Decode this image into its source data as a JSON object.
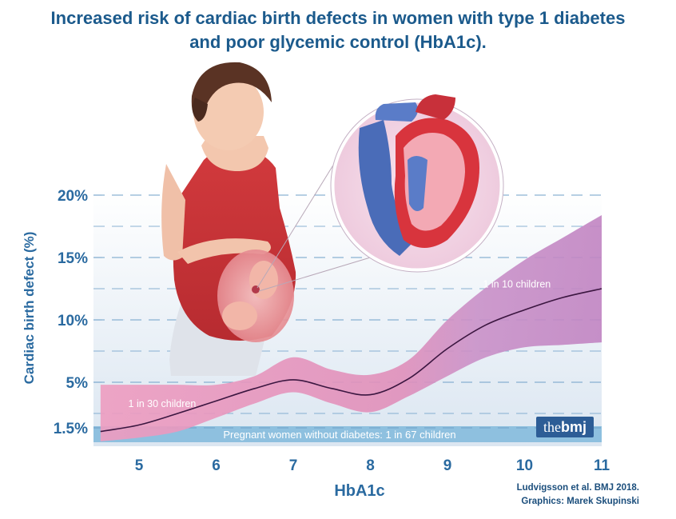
{
  "title_line1": "Increased risk of cardiac birth defects in women with type 1 diabetes",
  "title_line2": "and poor glycemic control (HbA1c).",
  "credits": {
    "source": "Ludvigsson et al. BMJ 2018.",
    "graphics": "Graphics: Marek Skupinski"
  },
  "logo": {
    "light": "the",
    "bold": "bmj"
  },
  "colors": {
    "axis_text": "#2a6aa0",
    "title": "#1b5a8c",
    "band_low": "#e792b6",
    "band_high": "#c98bc6",
    "curve": "#3b1640",
    "baseline_band": "#8ec0df",
    "grid": "#6fa0c8"
  },
  "chart_data": {
    "type": "line",
    "xlabel": "HbA1c",
    "ylabel": "Cardiac birth defect (%)",
    "xlim": [
      4.5,
      11
    ],
    "ylim": [
      0,
      21
    ],
    "x_ticks": [
      5,
      6,
      7,
      8,
      9,
      10,
      11
    ],
    "y_ticks": [
      {
        "value": 1.5,
        "label": "1.5%"
      },
      {
        "value": 5,
        "label": "5%"
      },
      {
        "value": 10,
        "label": "10%"
      },
      {
        "value": 15,
        "label": "15%"
      },
      {
        "value": 20,
        "label": "20%"
      }
    ],
    "minor_gridlines": [
      2.5,
      7.5,
      12.5,
      17.5
    ],
    "grid": true,
    "series": [
      {
        "x": [
          4.5,
          5,
          5.5,
          6,
          6.5,
          7,
          7.5,
          8,
          8.5,
          9,
          9.5,
          10,
          10.5,
          11
        ],
        "y": [
          1.2,
          1.7,
          2.5,
          3.5,
          4.5,
          5.2,
          4.5,
          4.0,
          5.3,
          7.7,
          9.6,
          10.8,
          11.8,
          12.5
        ],
        "lower": [
          0.4,
          0.7,
          1.2,
          2.2,
          3.3,
          4.2,
          3.3,
          2.6,
          3.9,
          5.5,
          7.0,
          7.8,
          8.0,
          8.2
        ],
        "upper": [
          4.8,
          4.8,
          4.8,
          4.8,
          5.5,
          7.0,
          6.0,
          5.6,
          6.8,
          10.0,
          12.6,
          14.8,
          16.6,
          18.4
        ]
      }
    ],
    "baseline": {
      "value": 1.5,
      "label": "Pregnant women without diabetes: 1 in 67 children"
    },
    "annotations": [
      {
        "text": "1 in 30 children",
        "x": 5.3,
        "y": 3.0
      },
      {
        "text": "1 in 10 children",
        "x": 9.9,
        "y": 12.6
      }
    ]
  }
}
